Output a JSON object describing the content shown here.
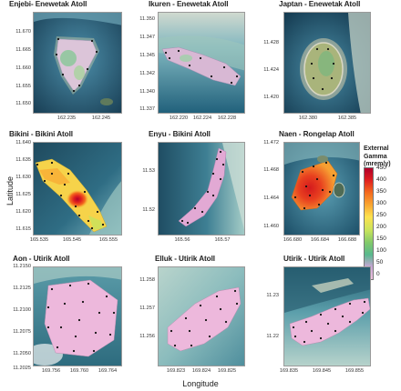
{
  "axes": {
    "y_label": "Latitude",
    "x_label": "Longitude"
  },
  "legend": {
    "title_lines": [
      "External",
      "Gamma",
      "(mrem/y)"
    ],
    "ticks": [
      "450",
      "400",
      "350",
      "300",
      "250",
      "200",
      "150",
      "100",
      "50",
      "0"
    ],
    "colors": [
      "#b0002a",
      "#e0201f",
      "#f46b1e",
      "#f9a632",
      "#fde24f",
      "#c8e35c",
      "#82c96a",
      "#58b88e",
      "#c9a6d6",
      "#f2c4df"
    ]
  },
  "panels": [
    {
      "title": "Enjebi- Enewetak Atoll",
      "y_ticks": [
        "11.670",
        "11.665",
        "11.660",
        "11.655",
        "11.650"
      ],
      "x_ticks": [
        "162.235",
        "162.245"
      ],
      "dose_level": "low-moderate",
      "colors": {
        "land": "#d9c4d6",
        "hot": "#8cc79a"
      }
    },
    {
      "title": "Ikuren - Enewetak Atoll",
      "y_ticks": [
        "11.350",
        "11.347",
        "11.345",
        "11.342",
        "11.340",
        "11.337"
      ],
      "x_ticks": [
        "162.220",
        "162.224",
        "162.228"
      ],
      "dose_level": "low",
      "colors": {
        "land": "#d7b7d3",
        "hot": "#9fd1a8"
      }
    },
    {
      "title": "Japtan - Enewetak Atoll",
      "y_ticks": [
        "11.428",
        "11.424",
        "11.420"
      ],
      "x_ticks": [
        "162.380",
        "162.385"
      ],
      "dose_level": "low",
      "colors": {
        "land": "#a9b47b",
        "hot": "#79b77f"
      }
    },
    {
      "title": "Bikini - Bikini Atoll",
      "y_ticks": [
        "11.640",
        "11.635",
        "11.630",
        "11.625",
        "11.620",
        "11.615"
      ],
      "x_ticks": [
        "165.535",
        "165.545",
        "165.555"
      ],
      "dose_level": "high",
      "colors": {
        "land": "#f6d34a",
        "hot": "#e0201f"
      }
    },
    {
      "title": "Enyu - Bikini Atoll",
      "y_ticks": [
        "11.53",
        "11.52"
      ],
      "x_ticks": [
        "165.56",
        "165.57"
      ],
      "dose_level": "low",
      "colors": {
        "land": "#e2a9d4",
        "hot": "#e2a9d4"
      }
    },
    {
      "title": "Naen - Rongelap Atoll",
      "y_ticks": [
        "11.472",
        "11.468",
        "11.464",
        "11.460"
      ],
      "x_ticks": [
        "166.680",
        "166.684",
        "166.688"
      ],
      "dose_level": "high",
      "colors": {
        "land": "#f7a032",
        "hot": "#e0201f"
      }
    },
    {
      "title": "Aon - Utirik Atoll",
      "y_ticks": [
        "11.2150",
        "11.2125",
        "11.2100",
        "11.2075",
        "11.2050",
        "11.2025"
      ],
      "x_ticks": [
        "169.756",
        "169.760",
        "169.764"
      ],
      "dose_level": "none",
      "colors": {
        "land": "#edb8dc",
        "hot": "#edb8dc"
      }
    },
    {
      "title": "Elluk - Utirik Atoll",
      "y_ticks": [
        "11.258",
        "11.257",
        "11.256"
      ],
      "x_ticks": [
        "169.823",
        "169.824",
        "169.825"
      ],
      "dose_level": "none",
      "colors": {
        "land": "#edb8dc",
        "hot": "#edb8dc"
      }
    },
    {
      "title": "Utirik - Utirik Atoll",
      "y_ticks": [
        "11.23",
        "11.22"
      ],
      "x_ticks": [
        "169.835",
        "169.845",
        "169.855"
      ],
      "dose_level": "none",
      "colors": {
        "land": "#edb8dc",
        "hot": "#edb8dc"
      }
    }
  ]
}
